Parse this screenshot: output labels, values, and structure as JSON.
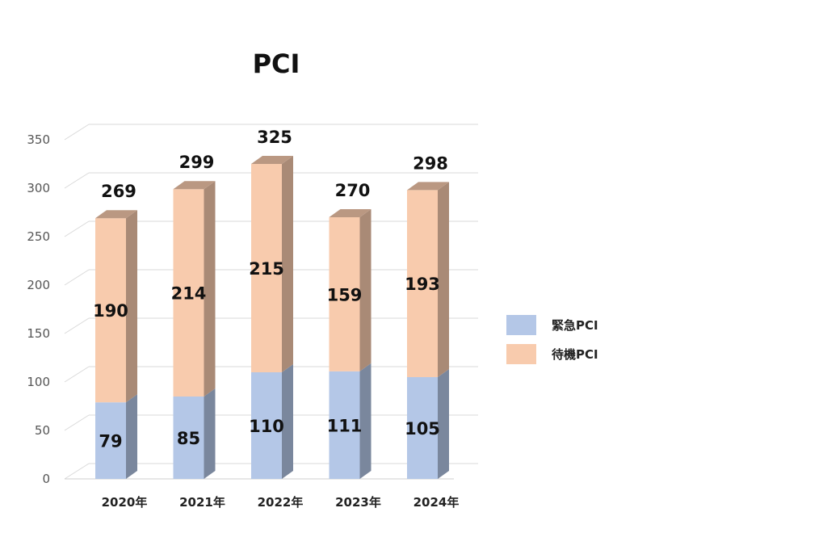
{
  "chart_data": {
    "type": "bar",
    "stacked": true,
    "three_d": true,
    "title": "PCI",
    "categories": [
      "2020年",
      "2021年",
      "2022年",
      "2023年",
      "2024年"
    ],
    "series": [
      {
        "name": "緊急PCI",
        "values": [
          79,
          85,
          110,
          111,
          105
        ],
        "color": "#b4c7e7"
      },
      {
        "name": "待機PCI",
        "values": [
          190,
          214,
          215,
          159,
          193
        ],
        "color": "#f8cbad"
      }
    ],
    "totals": [
      269,
      299,
      325,
      270,
      298
    ],
    "ylim": [
      0,
      350
    ],
    "yticks": [
      0,
      50,
      100,
      150,
      200,
      250,
      300,
      350
    ],
    "grid": true,
    "legend_position": "right"
  }
}
